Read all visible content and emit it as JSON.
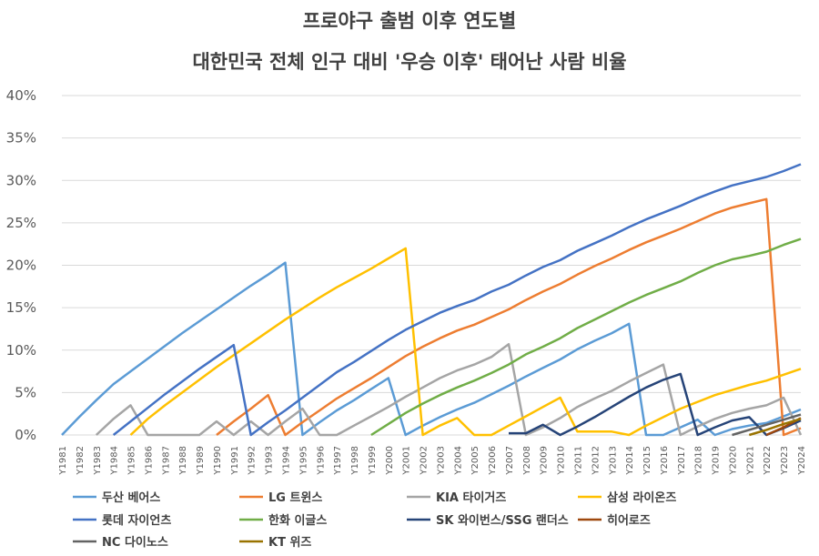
{
  "chart_data": {
    "type": "line",
    "title": "프로야구 출범 이후 연도별",
    "subtitle": "대한민국 전체 인구 대비 '우승 이후' 태어난 사람 비율",
    "xlabel": "",
    "ylabel": "",
    "ylim": [
      0,
      40
    ],
    "y_ticks": [
      "0%",
      "5%",
      "10%",
      "15%",
      "20%",
      "25%",
      "30%",
      "35%",
      "40%"
    ],
    "grid": true,
    "legend_position": "bottom",
    "categories": [
      "Y1981",
      "Y1982",
      "Y1983",
      "Y1984",
      "Y1985",
      "Y1986",
      "Y1987",
      "Y1988",
      "Y1989",
      "Y1990",
      "Y1991",
      "Y1992",
      "Y1993",
      "Y1994",
      "Y1995",
      "Y1996",
      "Y1997",
      "Y1998",
      "Y1999",
      "Y2000",
      "Y2001",
      "Y2002",
      "Y2003",
      "Y2004",
      "Y2005",
      "Y2006",
      "Y2007",
      "Y2008",
      "Y2009",
      "Y2010",
      "Y2011",
      "Y2012",
      "Y2013",
      "Y2014",
      "Y2015",
      "Y2016",
      "Y2017",
      "Y2018",
      "Y2019",
      "Y2020",
      "Y2021",
      "Y2022",
      "Y2023",
      "Y2024"
    ],
    "series": [
      {
        "name": "두산 베어스",
        "color": "#5B9BD5",
        "values": [
          0,
          2.1,
          4.1,
          6.0,
          7.5,
          9.0,
          10.5,
          12.0,
          13.4,
          14.8,
          16.2,
          17.6,
          18.9,
          20.3,
          0,
          1.5,
          2.9,
          4.1,
          5.4,
          6.7,
          0,
          1.1,
          2.1,
          3.0,
          3.8,
          4.8,
          5.8,
          6.9,
          7.9,
          8.9,
          10.1,
          11.1,
          12.0,
          13.1,
          0,
          0,
          0.9,
          1.8,
          0,
          0.7,
          1.1,
          1.4,
          2.2,
          3.0
        ]
      },
      {
        "name": "LG 트윈스",
        "color": "#ED7D31",
        "values": [
          null,
          null,
          null,
          null,
          null,
          null,
          null,
          null,
          null,
          0,
          1.6,
          3.1,
          4.7,
          0,
          1.5,
          2.9,
          4.3,
          5.5,
          6.7,
          8.0,
          9.3,
          10.4,
          11.4,
          12.3,
          13.0,
          13.9,
          14.8,
          15.9,
          16.9,
          17.8,
          18.9,
          19.9,
          20.8,
          21.8,
          22.7,
          23.5,
          24.3,
          25.2,
          26.1,
          26.8,
          27.3,
          27.8,
          0,
          0.8
        ]
      },
      {
        "name": "KIA 타이거즈",
        "color": "#A5A5A5",
        "values": [
          null,
          null,
          0,
          1.9,
          3.5,
          0,
          0,
          0,
          0,
          1.6,
          0,
          1.6,
          0,
          1.6,
          3.1,
          0,
          0,
          1.1,
          2.2,
          3.3,
          4.5,
          5.6,
          6.7,
          7.6,
          8.3,
          9.2,
          10.7,
          0,
          0.9,
          2.0,
          3.3,
          4.3,
          5.2,
          6.3,
          7.3,
          8.3,
          0,
          1.0,
          1.9,
          2.6,
          3.1,
          3.5,
          4.4,
          0
        ]
      },
      {
        "name": "삼성 라이온즈",
        "color": "#FFC000",
        "values": [
          null,
          null,
          null,
          null,
          0,
          1.9,
          3.5,
          5.0,
          6.5,
          8.0,
          9.4,
          10.8,
          12.2,
          13.6,
          14.9,
          16.2,
          17.4,
          18.5,
          19.6,
          20.8,
          22.0,
          0,
          1.1,
          2.0,
          0,
          0,
          1.1,
          2.2,
          3.3,
          4.4,
          0.4,
          0.4,
          0.4,
          0,
          1.1,
          2.1,
          3.1,
          3.9,
          4.7,
          5.3,
          5.9,
          6.4,
          7.1,
          7.8
        ]
      },
      {
        "name": "롯데 자이언츠",
        "color": "#4472C4",
        "values": [
          null,
          null,
          null,
          0,
          1.6,
          3.2,
          4.8,
          6.3,
          7.8,
          9.2,
          10.6,
          0,
          1.5,
          2.9,
          4.4,
          5.9,
          7.4,
          8.6,
          9.9,
          11.2,
          12.4,
          13.4,
          14.4,
          15.2,
          15.9,
          16.9,
          17.7,
          18.8,
          19.8,
          20.6,
          21.7,
          22.6,
          23.5,
          24.5,
          25.4,
          26.2,
          27.0,
          27.9,
          28.7,
          29.4,
          29.9,
          30.4,
          31.1,
          31.9
        ]
      },
      {
        "name": "한화 이글스",
        "color": "#70AD47",
        "values": [
          null,
          null,
          null,
          null,
          null,
          null,
          null,
          null,
          null,
          null,
          null,
          null,
          null,
          null,
          null,
          null,
          null,
          null,
          0,
          1.3,
          2.6,
          3.7,
          4.7,
          5.6,
          6.4,
          7.3,
          8.3,
          9.5,
          10.4,
          11.4,
          12.6,
          13.6,
          14.6,
          15.6,
          16.5,
          17.3,
          18.1,
          19.1,
          20.0,
          20.7,
          21.1,
          21.6,
          22.4,
          23.1
        ]
      },
      {
        "name": "SK 와이번스/SSG 랜더스",
        "color": "#264478",
        "values": [
          null,
          null,
          null,
          null,
          null,
          null,
          null,
          null,
          null,
          null,
          null,
          null,
          null,
          null,
          null,
          null,
          null,
          null,
          null,
          null,
          null,
          null,
          null,
          null,
          null,
          null,
          0.2,
          0.2,
          1.2,
          0,
          1.0,
          2.1,
          3.3,
          4.5,
          5.6,
          6.5,
          7.2,
          0,
          0.9,
          1.7,
          2.1,
          0,
          0.8,
          1.7
        ]
      },
      {
        "name": "히어로즈",
        "color": "#9E480E",
        "values": [
          null,
          null,
          null,
          null,
          null,
          null,
          null,
          null,
          null,
          null,
          null,
          null,
          null,
          null,
          null,
          null,
          null,
          null,
          null,
          null,
          null,
          null,
          null,
          null,
          null,
          null,
          null,
          null,
          null,
          null,
          null,
          null,
          null,
          null,
          null,
          null,
          null,
          null,
          null,
          null,
          null,
          0,
          0.9,
          2.0
        ]
      },
      {
        "name": "NC 다이노스",
        "color": "#636363",
        "values": [
          null,
          null,
          null,
          null,
          null,
          null,
          null,
          null,
          null,
          null,
          null,
          null,
          null,
          null,
          null,
          null,
          null,
          null,
          null,
          null,
          null,
          null,
          null,
          null,
          null,
          null,
          null,
          null,
          null,
          null,
          null,
          null,
          null,
          null,
          null,
          null,
          null,
          null,
          null,
          0,
          0.6,
          1.2,
          1.8,
          2.4
        ]
      },
      {
        "name": "KT 위즈",
        "color": "#997300",
        "values": [
          null,
          null,
          null,
          null,
          null,
          null,
          null,
          null,
          null,
          null,
          null,
          null,
          null,
          null,
          null,
          null,
          null,
          null,
          null,
          null,
          null,
          null,
          null,
          null,
          null,
          null,
          null,
          null,
          null,
          null,
          null,
          null,
          null,
          null,
          null,
          null,
          null,
          null,
          null,
          null,
          0,
          0.6,
          1.3,
          1.9
        ]
      }
    ]
  }
}
